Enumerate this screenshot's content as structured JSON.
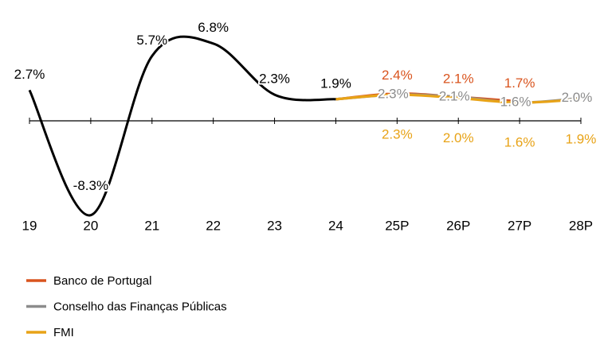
{
  "chart_data": {
    "type": "line",
    "categories": [
      "19",
      "20",
      "21",
      "22",
      "23",
      "24",
      "25P",
      "26P",
      "27P",
      "28P"
    ],
    "series": [
      {
        "color": "#000000",
        "values": [
          2.7,
          -8.3,
          5.7,
          6.8,
          2.3,
          1.9,
          null,
          null,
          null,
          null
        ],
        "value_labels": [
          "2.7%",
          "-8.3%",
          "5.7%",
          "6.8%",
          "2.3%",
          "1.9%",
          null,
          null,
          null,
          null
        ]
      },
      {
        "name": "Banco de Portugal",
        "color": "#d9541e",
        "values": [
          null,
          null,
          null,
          null,
          null,
          null,
          2.4,
          2.1,
          1.7,
          null
        ],
        "value_labels": [
          null,
          null,
          null,
          null,
          null,
          null,
          "2.4%",
          "2.1%",
          "1.7%",
          null
        ]
      },
      {
        "name": "Conselho das Finanças Públicas",
        "color": "#8c8c8c",
        "values": [
          null,
          null,
          null,
          null,
          null,
          null,
          2.3,
          2.1,
          1.6,
          2.0
        ],
        "value_labels": [
          null,
          null,
          null,
          null,
          null,
          null,
          "2.3%",
          "2.1%",
          "1.6%",
          "2.0%"
        ]
      },
      {
        "name": "FMI",
        "color": "#e8a317",
        "values": [
          null,
          null,
          null,
          null,
          null,
          null,
          2.3,
          2.0,
          1.6,
          1.9
        ],
        "value_labels": [
          null,
          null,
          null,
          null,
          null,
          null,
          "2.3%",
          "2.0%",
          "1.6%",
          "1.9%"
        ]
      }
    ],
    "ylim": [
      -10,
      8
    ],
    "legend": "bottom-left"
  }
}
